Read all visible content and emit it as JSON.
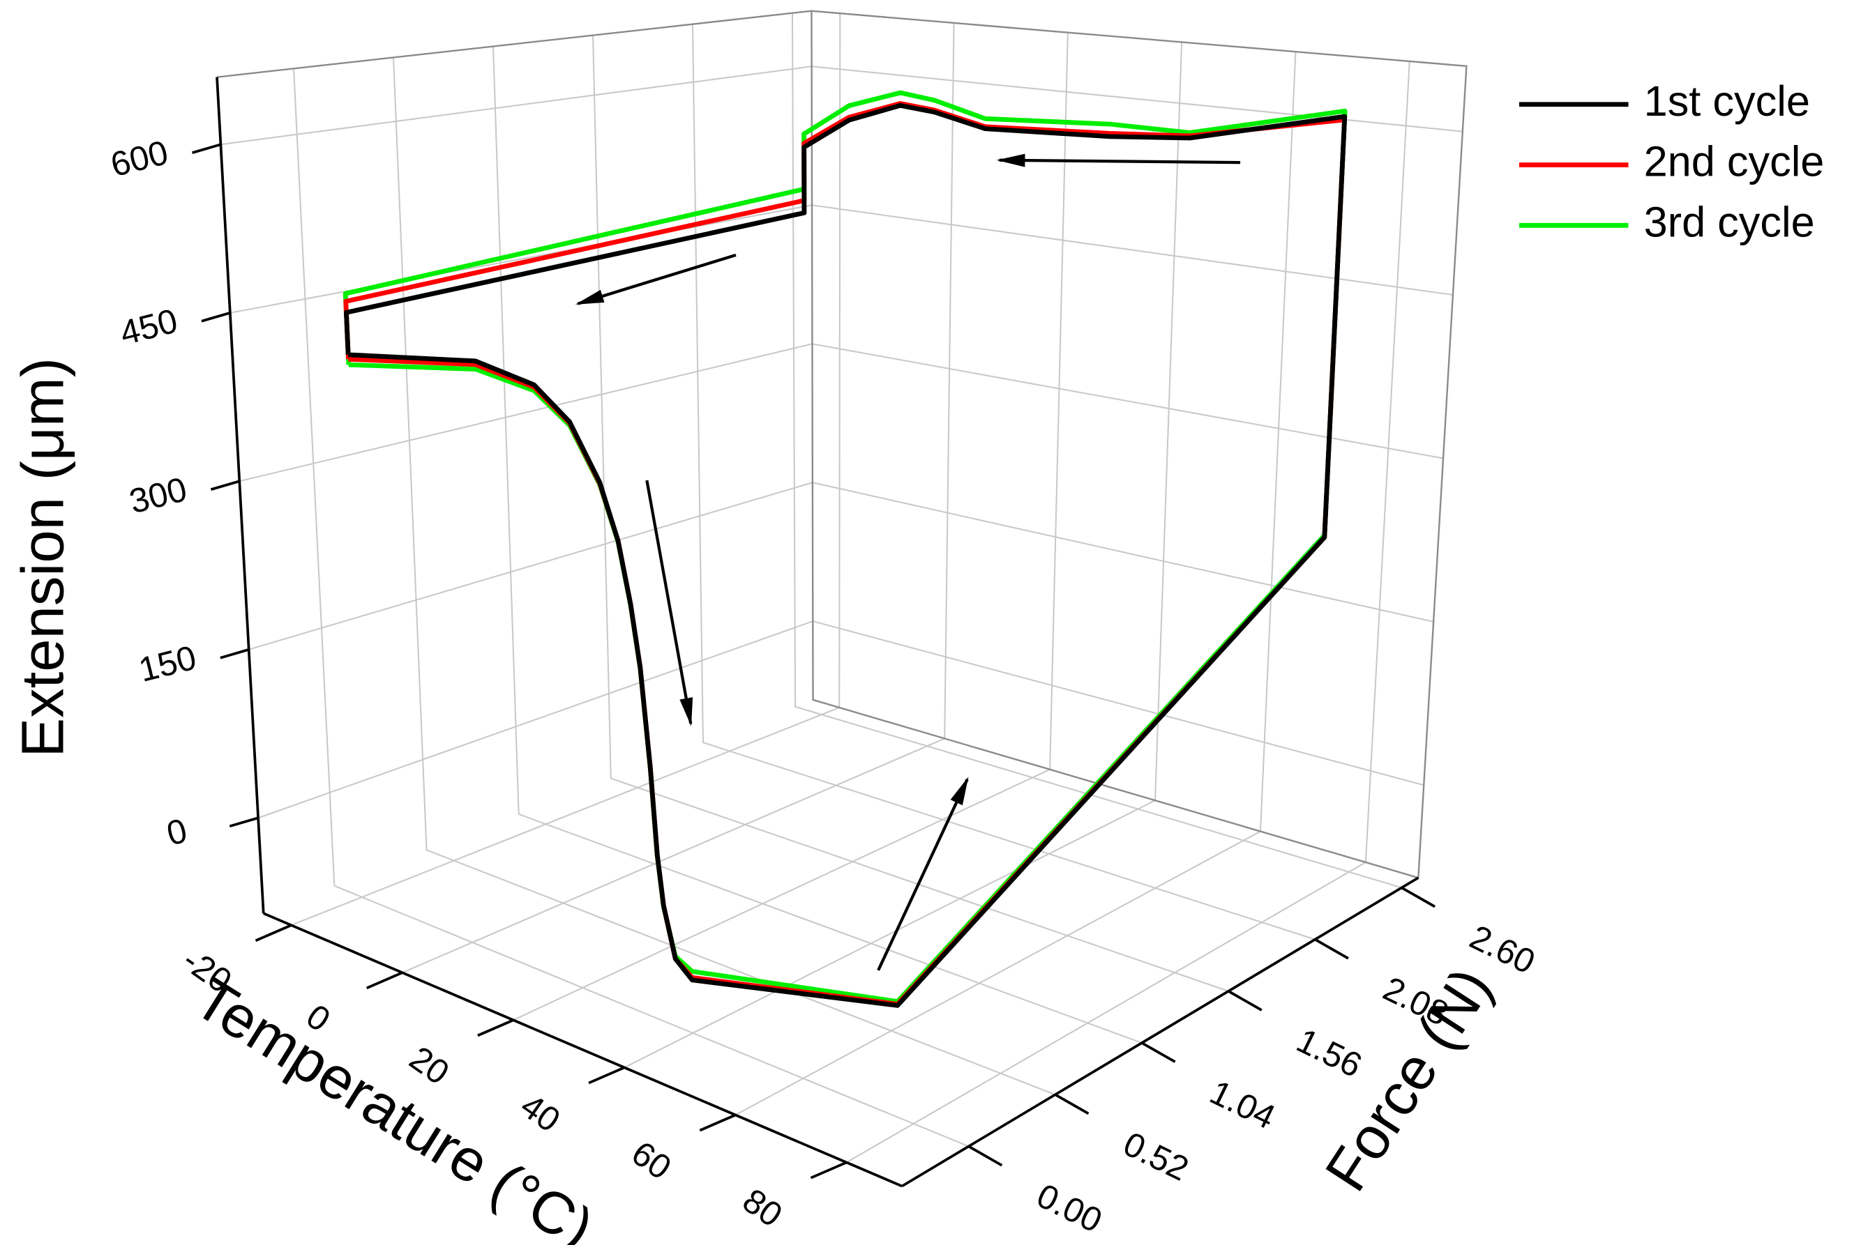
{
  "chart_data": {
    "type": "line3d",
    "x_label": "Temperature (°C)",
    "y_label": "Force (N)",
    "z_label": "Extension (μm)",
    "xlim": [
      -25,
      90
    ],
    "ylim": [
      -0.4,
      2.7
    ],
    "zlim": [
      -85,
      660
    ],
    "xticks": [
      -20,
      0,
      20,
      40,
      60,
      80
    ],
    "yticks": [
      {
        "value": 0,
        "label": "0.00"
      },
      0.52,
      1.04,
      1.56,
      2.08,
      {
        "value": 2.6,
        "label": "2.60"
      }
    ],
    "zticks": [
      0,
      150,
      300,
      450,
      600
    ],
    "grid": true,
    "legend": "upper right",
    "series": [
      {
        "name": "1st cycle",
        "color": "#000000",
        "x": [
          -18,
          4,
          14,
          20,
          25,
          28,
          30,
          31.5,
          33,
          34,
          35,
          37,
          40,
          77,
          77,
          77,
          50,
          36,
          14,
          5,
          -1,
          -10,
          -18,
          -18,
          -18,
          -18
        ],
        "y": [
          0,
          0,
          0,
          0,
          0,
          0,
          0,
          0,
          0,
          0,
          0,
          0,
          0,
          0,
          2.45,
          2.45,
          2.45,
          2.45,
          2.45,
          2.45,
          2.45,
          2.45,
          2.45,
          2.45,
          0,
          0
        ],
        "z": [
          407,
          425,
          415,
          390,
          345,
          300,
          250,
          200,
          120,
          50,
          10,
          -30,
          -42,
          0,
          230,
          615,
          580,
          573,
          567,
          578,
          581,
          560,
          526,
          457,
          445,
          407
        ]
      },
      {
        "name": "2nd cycle",
        "color": "#ff0000",
        "x": [
          -18,
          4,
          14,
          20,
          25,
          28,
          30,
          31.5,
          33,
          34,
          35,
          37,
          40,
          77,
          77,
          77,
          50,
          36,
          14,
          5,
          -1,
          -10,
          -18,
          -18,
          -18,
          -18
        ],
        "y": [
          0,
          0,
          0,
          0,
          0,
          0,
          0,
          0,
          0,
          0,
          0,
          0,
          0,
          0,
          2.45,
          2.45,
          2.45,
          2.45,
          2.45,
          2.45,
          2.45,
          2.45,
          2.45,
          2.45,
          0,
          0
        ],
        "z": [
          403,
          422,
          413,
          389,
          344,
          300,
          250,
          200,
          120,
          50,
          10,
          -30,
          -40,
          1,
          230,
          612,
          582,
          576,
          569,
          580,
          583,
          563,
          530,
          470,
          455,
          403
        ]
      },
      {
        "name": "3rd cycle",
        "color": "#00ee00",
        "x": [
          -18,
          4,
          14,
          20,
          25,
          28,
          30,
          31.5,
          33,
          34,
          35,
          37,
          40,
          77,
          77,
          77,
          50,
          36,
          14,
          5,
          -1,
          -10,
          -18,
          -18,
          -18,
          -18
        ],
        "y": [
          0,
          0,
          0,
          0,
          0,
          0,
          0,
          0,
          0,
          0,
          0,
          0,
          0,
          0,
          2.45,
          2.45,
          2.45,
          2.45,
          2.45,
          2.45,
          2.45,
          2.45,
          2.45,
          2.45,
          0,
          0
        ],
        "z": [
          398,
          418,
          410,
          387,
          343,
          299,
          249,
          199,
          119,
          49,
          9,
          -28,
          -35,
          3,
          232,
          620,
          585,
          585,
          577,
          590,
          594,
          575,
          540,
          482,
          462,
          398
        ]
      }
    ]
  }
}
